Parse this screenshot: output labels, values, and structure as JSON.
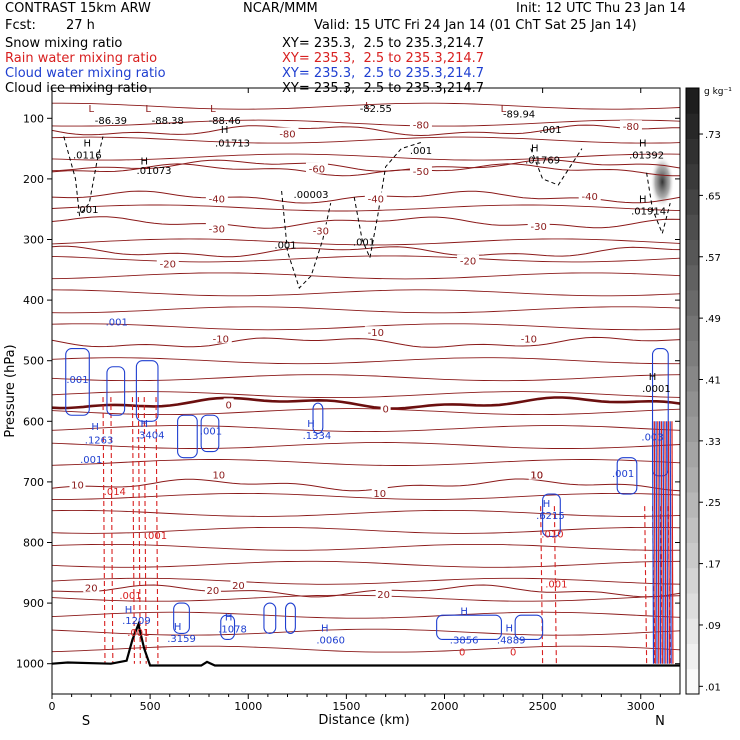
{
  "header": {
    "model": "CONTRAST 15km ARW",
    "center": "NCAR/MMM",
    "init": "Init: 12 UTC Thu 23 Jan 14",
    "fcst_label": "Fcst:",
    "fcst_value": "27 h",
    "valid": "Valid: 15 UTC Fri 24 Jan 14 (01 ChT Sat 25 Jan 14)"
  },
  "fields": [
    {
      "name": "Snow mixing ratio",
      "xy": "XY= 235.3,  2.5 to 235.3,214.7",
      "color": "#000000"
    },
    {
      "name": "Rain water mixing ratio",
      "xy": "XY= 235.3,  2.5 to 235.3,214.7",
      "color": "#d82020"
    },
    {
      "name": "Cloud water mixing ratio",
      "xy": "XY= 235.3,  2.5 to 235.3,214.7",
      "color": "#1f3fd0"
    },
    {
      "name": "Cloud ice mixing ratio",
      "xy": "XY= 235.3,  2.5 to 235.3,214.7",
      "color": "#000000"
    }
  ],
  "chart_data": {
    "type": "cross-section",
    "xlabel": "Distance (km)",
    "ylabel": "Pressure (hPa)",
    "xlim": [
      0,
      3200
    ],
    "ylim": [
      1050,
      50
    ],
    "x_ticks": [
      "0",
      "500",
      "1000",
      "1500",
      "2000",
      "2500",
      "3000"
    ],
    "x_tick_values": [
      0,
      500,
      1000,
      1500,
      2000,
      2500,
      3000
    ],
    "y_ticks": [
      "100",
      "200",
      "300",
      "400",
      "500",
      "600",
      "700",
      "800",
      "900",
      "1000"
    ],
    "y_tick_values": [
      100,
      200,
      300,
      400,
      500,
      600,
      700,
      800,
      900,
      1000
    ],
    "endpoints": {
      "left": "S",
      "right": "N"
    },
    "colorbar": {
      "unit": "g kg⁻¹",
      "labels": [
        ".73",
        ".65",
        ".57",
        ".49",
        ".41",
        ".33",
        ".25",
        ".17",
        ".09",
        ".01"
      ],
      "values": [
        0.73,
        0.65,
        0.57,
        0.49,
        0.41,
        0.33,
        0.25,
        0.17,
        0.09,
        0.01
      ]
    },
    "isotherms": [
      {
        "label": "-80",
        "p": 120
      },
      {
        "label": "-60",
        "p": 178
      },
      {
        "label": "-50",
        "p": 185
      },
      {
        "label": "-40",
        "p": 230
      },
      {
        "label": "-30",
        "p": 272
      },
      {
        "label": "-20",
        "p": 320
      },
      {
        "label": "-10",
        "p": 470
      },
      {
        "label": "0",
        "p": 570
      },
      {
        "label": "10",
        "p": 705
      },
      {
        "label": "20",
        "p": 880
      }
    ],
    "isotherm_label_positions": [
      {
        "label": "-80",
        "x": 1200,
        "p": 125
      },
      {
        "label": "-80",
        "x": 1880,
        "p": 110
      },
      {
        "label": "-80",
        "x": 2950,
        "p": 113
      },
      {
        "label": "-60",
        "x": 1350,
        "p": 183
      },
      {
        "label": "-50",
        "x": 1880,
        "p": 187
      },
      {
        "label": "-40",
        "x": 840,
        "p": 232
      },
      {
        "label": "-40",
        "x": 1650,
        "p": 232
      },
      {
        "label": "-40",
        "x": 2740,
        "p": 228
      },
      {
        "label": "-30",
        "x": 840,
        "p": 282
      },
      {
        "label": "-30",
        "x": 1370,
        "p": 285
      },
      {
        "label": "-30",
        "x": 2480,
        "p": 278
      },
      {
        "label": "-20",
        "x": 590,
        "p": 340
      },
      {
        "label": "-20",
        "x": 2120,
        "p": 335
      },
      {
        "label": "-10",
        "x": 860,
        "p": 463
      },
      {
        "label": "-10",
        "x": 1650,
        "p": 453
      },
      {
        "label": "-10",
        "x": 2430,
        "p": 463
      },
      {
        "label": "0",
        "x": 900,
        "p": 572
      },
      {
        "label": "0",
        "x": 1700,
        "p": 579
      },
      {
        "label": "10",
        "x": 130,
        "p": 704
      },
      {
        "label": "10",
        "x": 850,
        "p": 688
      },
      {
        "label": "10",
        "x": 1670,
        "p": 718
      },
      {
        "label": "10",
        "x": 2470,
        "p": 688
      },
      {
        "label": "20",
        "x": 200,
        "p": 874
      },
      {
        "label": "20",
        "x": 820,
        "p": 878
      },
      {
        "label": "20",
        "x": 950,
        "p": 870
      },
      {
        "label": "20",
        "x": 1690,
        "p": 885
      }
    ],
    "annotations": [
      {
        "text": "L",
        "x": 200,
        "p": 83,
        "color": "#8b1a1a"
      },
      {
        "text": "-86.39",
        "x": 300,
        "p": 103,
        "color": "#000000"
      },
      {
        "text": "L",
        "x": 490,
        "p": 83,
        "color": "#8b1a1a"
      },
      {
        "text": "-88.38",
        "x": 590,
        "p": 103,
        "color": "#000000"
      },
      {
        "text": "L",
        "x": 820,
        "p": 83,
        "color": "#8b1a1a"
      },
      {
        "text": "-88.46",
        "x": 880,
        "p": 103,
        "color": "#000000"
      },
      {
        "text": "L",
        "x": 1610,
        "p": 78,
        "color": "#8b1a1a"
      },
      {
        "text": "-82.55",
        "x": 1650,
        "p": 83,
        "color": "#000000"
      },
      {
        "text": "L",
        "x": 2300,
        "p": 83,
        "color": "#8b1a1a"
      },
      {
        "text": "-89.94",
        "x": 2380,
        "p": 92,
        "color": "#000000"
      },
      {
        "text": "H",
        "x": 880,
        "p": 118,
        "color": "#000000"
      },
      {
        "text": ".01713",
        "x": 920,
        "p": 140,
        "color": "#000000"
      },
      {
        "text": "H",
        "x": 180,
        "p": 140,
        "color": "#000000"
      },
      {
        "text": ".0116",
        "x": 180,
        "p": 160,
        "color": "#000000"
      },
      {
        "text": "H",
        "x": 470,
        "p": 170,
        "color": "#000000"
      },
      {
        "text": ".01073",
        "x": 520,
        "p": 185,
        "color": "#000000"
      },
      {
        "text": "H",
        "x": 2460,
        "p": 148,
        "color": "#000000"
      },
      {
        "text": ".01769",
        "x": 2500,
        "p": 168,
        "color": "#000000"
      },
      {
        "text": "H",
        "x": 3010,
        "p": 140,
        "color": "#000000"
      },
      {
        "text": ".01392",
        "x": 3030,
        "p": 160,
        "color": "#000000"
      },
      {
        "text": ".001",
        "x": 2540,
        "p": 118,
        "color": "#000000"
      },
      {
        "text": ".001",
        "x": 1880,
        "p": 152,
        "color": "#000000"
      },
      {
        "text": ".00003",
        "x": 1320,
        "p": 225,
        "color": "#000000"
      },
      {
        "text": ".001",
        "x": 180,
        "p": 250,
        "color": "#000000"
      },
      {
        "text": ".001",
        "x": 1190,
        "p": 308,
        "color": "#000000"
      },
      {
        "text": ".001",
        "x": 1590,
        "p": 303,
        "color": "#000000"
      },
      {
        "text": "H",
        "x": 3010,
        "p": 232,
        "color": "#000000"
      },
      {
        "text": ".01914",
        "x": 3040,
        "p": 252,
        "color": "#000000"
      },
      {
        "text": ".001",
        "x": 330,
        "p": 435,
        "color": "#1f3fd0"
      },
      {
        "text": ".001",
        "x": 130,
        "p": 530,
        "color": "#1f3fd0"
      },
      {
        "text": "H",
        "x": 220,
        "p": 608,
        "color": "#1f3fd0"
      },
      {
        "text": ".1263",
        "x": 240,
        "p": 630,
        "color": "#1f3fd0"
      },
      {
        "text": "H",
        "x": 470,
        "p": 603,
        "color": "#1f3fd0"
      },
      {
        "text": ".3404",
        "x": 500,
        "p": 622,
        "color": "#1f3fd0"
      },
      {
        "text": ".001",
        "x": 810,
        "p": 615,
        "color": "#1f3fd0"
      },
      {
        "text": ".001",
        "x": 200,
        "p": 662,
        "color": "#1f3fd0"
      },
      {
        "text": "H",
        "x": 1320,
        "p": 603,
        "color": "#1f3fd0"
      },
      {
        "text": ".1334",
        "x": 1350,
        "p": 623,
        "color": "#1f3fd0"
      },
      {
        "text": "H",
        "x": 3060,
        "p": 525,
        "color": "#000000"
      },
      {
        "text": ".0001",
        "x": 3080,
        "p": 545,
        "color": "#000000"
      },
      {
        "text": ".003",
        "x": 3060,
        "p": 625,
        "color": "#1f3fd0"
      },
      {
        "text": ".001",
        "x": 2910,
        "p": 685,
        "color": "#1f3fd0"
      },
      {
        "text": ".014",
        "x": 320,
        "p": 715,
        "color": "#d82020"
      },
      {
        "text": ".001",
        "x": 530,
        "p": 788,
        "color": "#d82020"
      },
      {
        "text": "10",
        "x": 2470,
        "p": 688,
        "color": "#8b1a1a"
      },
      {
        "text": "H",
        "x": 2520,
        "p": 735,
        "color": "#1f3fd0"
      },
      {
        "text": ".6215",
        "x": 2540,
        "p": 755,
        "color": "#1f3fd0"
      },
      {
        "text": ".010",
        "x": 2550,
        "p": 785,
        "color": "#d82020"
      },
      {
        "text": ".001",
        "x": 2570,
        "p": 868,
        "color": "#d82020"
      },
      {
        "text": ".001",
        "x": 400,
        "p": 887,
        "color": "#d82020"
      },
      {
        "text": "H",
        "x": 390,
        "p": 910,
        "color": "#1f3fd0"
      },
      {
        "text": ".1209",
        "x": 430,
        "p": 928,
        "color": "#1f3fd0"
      },
      {
        "text": ".001",
        "x": 440,
        "p": 948,
        "color": "#d82020"
      },
      {
        "text": "H",
        "x": 640,
        "p": 938,
        "color": "#1f3fd0"
      },
      {
        "text": ".3159",
        "x": 660,
        "p": 958,
        "color": "#1f3fd0"
      },
      {
        "text": "H",
        "x": 900,
        "p": 922,
        "color": "#1f3fd0"
      },
      {
        "text": ".1078",
        "x": 920,
        "p": 942,
        "color": "#1f3fd0"
      },
      {
        "text": "H",
        "x": 1390,
        "p": 940,
        "color": "#1f3fd0"
      },
      {
        "text": ".0060",
        "x": 1420,
        "p": 960,
        "color": "#1f3fd0"
      },
      {
        "text": "H",
        "x": 2100,
        "p": 912,
        "color": "#1f3fd0"
      },
      {
        "text": ".3856",
        "x": 2100,
        "p": 960,
        "color": "#1f3fd0"
      },
      {
        "text": "H",
        "x": 2330,
        "p": 940,
        "color": "#1f3fd0"
      },
      {
        "text": ".4889",
        "x": 2340,
        "p": 960,
        "color": "#1f3fd0"
      },
      {
        "text": "0",
        "x": 2090,
        "p": 980,
        "color": "#d82020"
      },
      {
        "text": "0",
        "x": 2350,
        "p": 980,
        "color": "#d82020"
      }
    ],
    "terrain": [
      {
        "x": 0,
        "p": 1000
      },
      {
        "x": 80,
        "p": 998
      },
      {
        "x": 300,
        "p": 1000
      },
      {
        "x": 380,
        "p": 995
      },
      {
        "x": 410,
        "p": 960
      },
      {
        "x": 440,
        "p": 935
      },
      {
        "x": 470,
        "p": 975
      },
      {
        "x": 500,
        "p": 1003
      },
      {
        "x": 760,
        "p": 1003
      },
      {
        "x": 790,
        "p": 997
      },
      {
        "x": 830,
        "p": 1003
      },
      {
        "x": 2000,
        "p": 1003
      },
      {
        "x": 3200,
        "p": 1003
      }
    ]
  }
}
